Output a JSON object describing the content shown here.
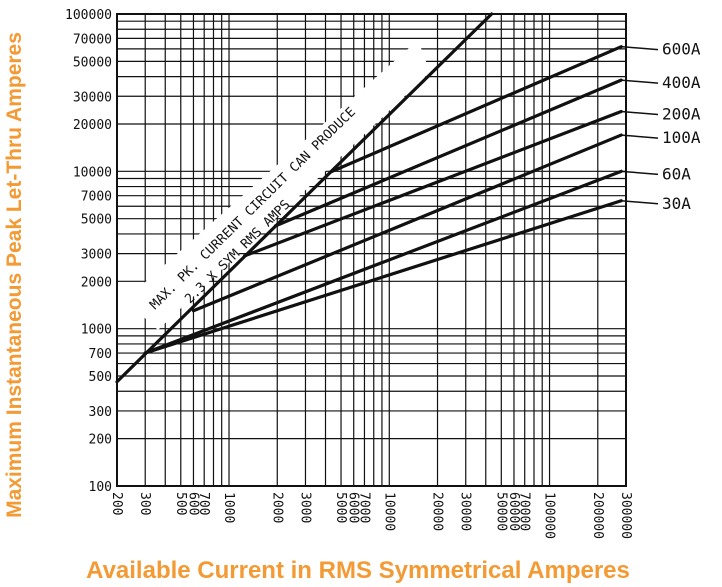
{
  "chart_data": {
    "type": "line",
    "title": "",
    "xlabel": "Available Current in RMS Symmetrical Amperes",
    "ylabel": "Maximum Instantaneous Peak Let-Thru Amperes",
    "xscale": "log",
    "yscale": "log",
    "xlim": [
      200,
      300000
    ],
    "ylim": [
      100,
      100000
    ],
    "grid": true,
    "x_tick_labels": [
      "200",
      "300",
      "500",
      "600",
      "700",
      "1000",
      "2000",
      "3000",
      "5000",
      "6000",
      "7000",
      "10000",
      "20000",
      "30000",
      "50000",
      "60000",
      "70000",
      "100000",
      "200000",
      "300000"
    ],
    "y_tick_labels": [
      "100",
      "200",
      "300",
      "500",
      "700",
      "1000",
      "2000",
      "3000",
      "5000",
      "7000",
      "10000",
      "20000",
      "30000",
      "50000",
      "70000",
      "100000"
    ],
    "annotation_lines": [
      "MAX. PK. CURRENT CIRCUIT CAN PRODUCE",
      "2.3 X SYM RMS AMPS"
    ],
    "reference_line": {
      "name": "MAX. PK. CURRENT CIRCUIT CAN PRODUCE",
      "x": [
        200,
        43500
      ],
      "y": [
        460,
        100000
      ]
    },
    "series": [
      {
        "name": "600A",
        "x": [
          4300,
          280000
        ],
        "y": [
          9900,
          62000
        ]
      },
      {
        "name": "400A",
        "x": [
          1950,
          280000
        ],
        "y": [
          4500,
          38000
        ]
      },
      {
        "name": "200A",
        "x": [
          1250,
          280000
        ],
        "y": [
          2900,
          24000
        ]
      },
      {
        "name": "100A",
        "x": [
          600,
          280000
        ],
        "y": [
          1300,
          17000
        ]
      },
      {
        "name": "60A",
        "x": [
          300,
          280000
        ],
        "y": [
          700,
          10000
        ]
      },
      {
        "name": "30A",
        "x": [
          300,
          280000
        ],
        "y": [
          700,
          6500
        ]
      }
    ],
    "colors": {
      "title": "#F39A34",
      "ink": "#111111"
    }
  }
}
